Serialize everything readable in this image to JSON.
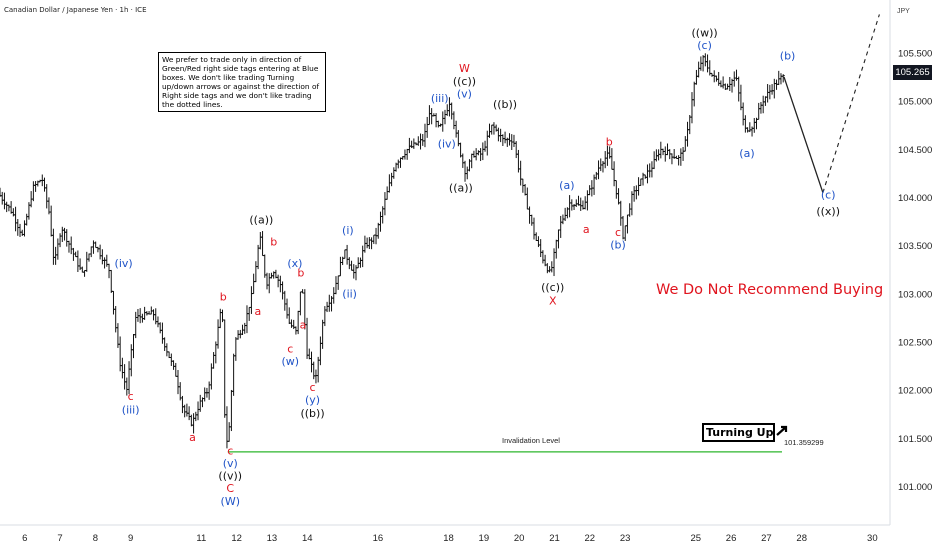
{
  "header": {
    "title": "Canadian Dollar / Japanese Yen · 1h · ICE"
  },
  "note": {
    "text": "We prefer to trade only in direction of Green/Red right side tags entering at Blue boxes. We don't like trading Turning up/down arrows or against the direction of Right side tags and we don't like trading the dotted lines."
  },
  "warning": {
    "text": "We Do Not Recommend Buying"
  },
  "turning": {
    "label": "Turning Up",
    "icon": "arrow-up-right-icon"
  },
  "axis": {
    "unit": "JPY",
    "current_price": "105.265",
    "y_ticks": [
      "105.500",
      "105.000",
      "104.500",
      "104.000",
      "103.500",
      "103.000",
      "102.500",
      "102.000",
      "101.500",
      "101.000"
    ],
    "x_ticks": [
      "6",
      "7",
      "8",
      "9",
      "11",
      "12",
      "13",
      "14",
      "16",
      "18",
      "19",
      "20",
      "21",
      "22",
      "23",
      "25",
      "26",
      "27",
      "28",
      "30"
    ]
  },
  "invalidation": {
    "label": "Invalidation Level",
    "price_text": "101.359299",
    "price": 101.359299,
    "color": "#2db52d"
  },
  "colors": {
    "red": "#e0141e",
    "blue": "#1f53c7",
    "black": "#111111"
  },
  "chart_data": {
    "type": "ohlc",
    "title": "Canadian Dollar / Japanese Yen · 1h · ICE",
    "ylim": [
      100.6,
      106.05
    ],
    "xlim": [
      5.3,
      30.5
    ],
    "y_ticks": [
      105.5,
      105.0,
      104.5,
      104.0,
      103.5,
      103.0,
      102.5,
      102.0,
      101.5,
      101.0
    ],
    "x_ticks": [
      6,
      7,
      8,
      9,
      11,
      12,
      13,
      14,
      16,
      18,
      19,
      20,
      21,
      22,
      23,
      25,
      26,
      27,
      28,
      30
    ],
    "path": [
      [
        5.3,
        104.05
      ],
      [
        5.7,
        103.85
      ],
      [
        6.0,
        103.6
      ],
      [
        6.3,
        104.1
      ],
      [
        6.55,
        104.2
      ],
      [
        6.75,
        103.85
      ],
      [
        6.9,
        103.3
      ],
      [
        7.1,
        103.7
      ],
      [
        7.4,
        103.45
      ],
      [
        7.7,
        103.2
      ],
      [
        8.0,
        103.55
      ],
      [
        8.45,
        103.25
      ],
      [
        8.75,
        102.3
      ],
      [
        8.95,
        102.0
      ],
      [
        9.2,
        102.75
      ],
      [
        9.7,
        102.8
      ],
      [
        10.1,
        102.4
      ],
      [
        10.35,
        102.15
      ],
      [
        10.55,
        101.8
      ],
      [
        10.8,
        101.65
      ],
      [
        11.0,
        101.85
      ],
      [
        11.25,
        102.0
      ],
      [
        11.5,
        102.55
      ],
      [
        11.65,
        102.9
      ],
      [
        11.75,
        101.4
      ],
      [
        11.85,
        101.6
      ],
      [
        12.0,
        102.5
      ],
      [
        12.3,
        102.7
      ],
      [
        12.5,
        103.0
      ],
      [
        12.72,
        103.6
      ],
      [
        12.9,
        103.1
      ],
      [
        13.1,
        103.25
      ],
      [
        13.3,
        103.1
      ],
      [
        13.55,
        102.7
      ],
      [
        13.75,
        102.6
      ],
      [
        13.9,
        103.15
      ],
      [
        14.05,
        102.4
      ],
      [
        14.3,
        102.1
      ],
      [
        14.55,
        102.85
      ],
      [
        14.8,
        103.0
      ],
      [
        15.1,
        103.45
      ],
      [
        15.4,
        103.2
      ],
      [
        15.7,
        103.5
      ],
      [
        16.0,
        103.6
      ],
      [
        16.25,
        103.95
      ],
      [
        16.55,
        104.35
      ],
      [
        16.9,
        104.5
      ],
      [
        17.35,
        104.6
      ],
      [
        17.55,
        104.9
      ],
      [
        17.8,
        104.7
      ],
      [
        18.1,
        105.0
      ],
      [
        18.3,
        104.6
      ],
      [
        18.55,
        104.25
      ],
      [
        18.75,
        104.45
      ],
      [
        19.0,
        104.45
      ],
      [
        19.3,
        104.75
      ],
      [
        19.6,
        104.6
      ],
      [
        19.9,
        104.6
      ],
      [
        20.1,
        104.2
      ],
      [
        20.3,
        103.9
      ],
      [
        20.5,
        103.6
      ],
      [
        20.75,
        103.35
      ],
      [
        20.95,
        103.2
      ],
      [
        21.2,
        103.7
      ],
      [
        21.5,
        103.95
      ],
      [
        21.85,
        103.9
      ],
      [
        22.1,
        104.1
      ],
      [
        22.35,
        104.35
      ],
      [
        22.6,
        104.45
      ],
      [
        22.85,
        104.0
      ],
      [
        23.0,
        103.6
      ],
      [
        23.25,
        104.0
      ],
      [
        23.55,
        104.2
      ],
      [
        23.8,
        104.3
      ],
      [
        24.05,
        104.5
      ],
      [
        24.35,
        104.45
      ],
      [
        24.6,
        104.4
      ],
      [
        24.8,
        104.6
      ],
      [
        25.0,
        105.15
      ],
      [
        25.25,
        105.45
      ],
      [
        25.55,
        105.25
      ],
      [
        25.9,
        105.15
      ],
      [
        26.2,
        105.25
      ],
      [
        26.45,
        104.7
      ],
      [
        26.7,
        104.75
      ],
      [
        26.95,
        105.0
      ],
      [
        27.25,
        105.15
      ],
      [
        27.5,
        105.25
      ]
    ],
    "projection": [
      [
        27.5,
        105.25
      ],
      [
        28.6,
        104.05
      ]
    ],
    "dotted_projection": [
      [
        28.6,
        104.05
      ],
      [
        30.2,
        105.9
      ]
    ],
    "labels": [
      {
        "text": "(iv)",
        "x": 8.8,
        "y": 103.28,
        "color": "blue"
      },
      {
        "text": "c",
        "x": 9.0,
        "y": 101.9,
        "color": "red"
      },
      {
        "text": "(iii)",
        "x": 9.0,
        "y": 101.76,
        "color": "blue"
      },
      {
        "text": "a",
        "x": 10.75,
        "y": 101.47,
        "color": "red"
      },
      {
        "text": "b",
        "x": 11.62,
        "y": 102.93,
        "color": "red"
      },
      {
        "text": "c",
        "x": 11.82,
        "y": 101.33,
        "color": "red"
      },
      {
        "text": "(v)",
        "x": 11.82,
        "y": 101.2,
        "color": "blue"
      },
      {
        "text": "((v))",
        "x": 11.82,
        "y": 101.07,
        "color": "black"
      },
      {
        "text": "C",
        "x": 11.82,
        "y": 100.94,
        "color": "red"
      },
      {
        "text": "(W)",
        "x": 11.82,
        "y": 100.81,
        "color": "blue"
      },
      {
        "text": "((a))",
        "x": 12.7,
        "y": 103.73,
        "color": "black"
      },
      {
        "text": "b",
        "x": 13.05,
        "y": 103.5,
        "color": "red"
      },
      {
        "text": "a",
        "x": 12.6,
        "y": 102.78,
        "color": "red"
      },
      {
        "text": "(x)",
        "x": 13.65,
        "y": 103.28,
        "color": "blue"
      },
      {
        "text": "b",
        "x": 13.82,
        "y": 103.18,
        "color": "red"
      },
      {
        "text": "a",
        "x": 13.88,
        "y": 102.64,
        "color": "red"
      },
      {
        "text": "c",
        "x": 13.52,
        "y": 102.39,
        "color": "red"
      },
      {
        "text": "(w)",
        "x": 13.52,
        "y": 102.26,
        "color": "blue"
      },
      {
        "text": "c",
        "x": 14.15,
        "y": 101.99,
        "color": "red"
      },
      {
        "text": "(y)",
        "x": 14.15,
        "y": 101.86,
        "color": "blue"
      },
      {
        "text": "((b))",
        "x": 14.15,
        "y": 101.72,
        "color": "black"
      },
      {
        "text": "(i)",
        "x": 15.15,
        "y": 103.62,
        "color": "blue"
      },
      {
        "text": "(ii)",
        "x": 15.2,
        "y": 102.96,
        "color": "blue"
      },
      {
        "text": "W",
        "x": 18.45,
        "y": 105.3,
        "color": "red"
      },
      {
        "text": "((c))",
        "x": 18.45,
        "y": 105.17,
        "color": "black"
      },
      {
        "text": "(v)",
        "x": 18.45,
        "y": 105.04,
        "color": "blue"
      },
      {
        "text": "(iii)",
        "x": 17.75,
        "y": 104.99,
        "color": "blue"
      },
      {
        "text": "(iv)",
        "x": 17.95,
        "y": 104.52,
        "color": "blue"
      },
      {
        "text": "((a))",
        "x": 18.35,
        "y": 104.06,
        "color": "black"
      },
      {
        "text": "((b))",
        "x": 19.6,
        "y": 104.93,
        "color": "black"
      },
      {
        "text": "(a)",
        "x": 21.35,
        "y": 104.09,
        "color": "blue"
      },
      {
        "text": "a",
        "x": 21.9,
        "y": 103.63,
        "color": "red"
      },
      {
        "text": "((c))",
        "x": 20.95,
        "y": 103.03,
        "color": "black"
      },
      {
        "text": "X",
        "x": 20.95,
        "y": 102.89,
        "color": "red"
      },
      {
        "text": "b",
        "x": 22.55,
        "y": 104.54,
        "color": "red"
      },
      {
        "text": "c",
        "x": 22.8,
        "y": 103.6,
        "color": "red"
      },
      {
        "text": "(b)",
        "x": 22.8,
        "y": 103.47,
        "color": "blue"
      },
      {
        "text": "((w))",
        "x": 25.25,
        "y": 105.67,
        "color": "black"
      },
      {
        "text": "(c)",
        "x": 25.25,
        "y": 105.54,
        "color": "blue"
      },
      {
        "text": "(b)",
        "x": 27.6,
        "y": 105.43,
        "color": "blue"
      },
      {
        "text": "(a)",
        "x": 26.45,
        "y": 104.42,
        "color": "blue"
      },
      {
        "text": "(c)",
        "x": 28.75,
        "y": 103.99,
        "color": "blue"
      },
      {
        "text": "((x))",
        "x": 28.75,
        "y": 103.82,
        "color": "black"
      }
    ]
  }
}
